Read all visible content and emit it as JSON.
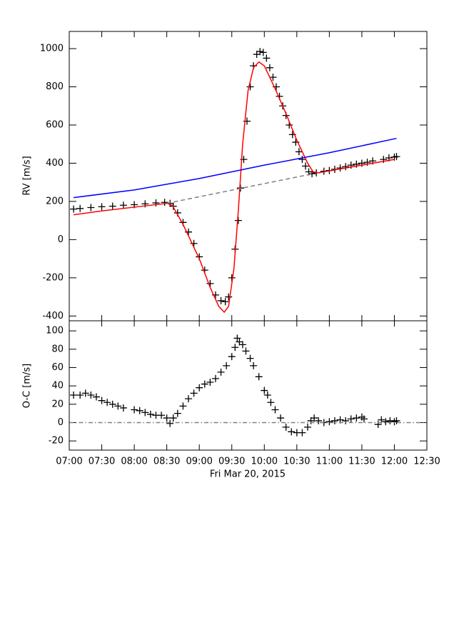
{
  "chart_data": [
    {
      "type": "scatter",
      "y_label": "RV [m/s]",
      "xlim": [
        "07:00",
        "12:30"
      ],
      "ylim": [
        -425,
        1090
      ],
      "yticks": [
        -400,
        -200,
        0,
        200,
        400,
        600,
        800,
        1000
      ],
      "series": [
        {
          "style": "cross",
          "color": "#000000",
          "x": [
            "07:04",
            "07:10",
            "07:20",
            "07:30",
            "07:40",
            "07:50",
            "08:00",
            "08:10",
            "08:20",
            "08:28",
            "08:33",
            "08:36",
            "08:40",
            "08:45",
            "08:50",
            "08:55",
            "09:00",
            "09:05",
            "09:10",
            "09:15",
            "09:20",
            "09:24",
            "09:27",
            "09:30",
            "09:33",
            "09:36",
            "09:38",
            "09:41",
            "09:44",
            "09:47",
            "09:50",
            "09:53",
            "09:56",
            "09:59",
            "10:02",
            "10:05",
            "10:08",
            "10:11",
            "10:14",
            "10:17",
            "10:20",
            "10:23",
            "10:26",
            "10:29",
            "10:32",
            "10:35",
            "10:38",
            "10:41",
            "10:44",
            "10:48",
            "10:55",
            "11:00",
            "11:05",
            "11:10",
            "11:15",
            "11:20",
            "11:25",
            "11:30",
            "11:35",
            "11:40",
            "11:50",
            "11:55",
            "12:00",
            "12:02"
          ],
          "values": [
            160,
            163,
            168,
            172,
            175,
            180,
            183,
            187,
            192,
            195,
            190,
            175,
            140,
            90,
            40,
            -20,
            -90,
            -160,
            -230,
            -290,
            -320,
            -325,
            -300,
            -200,
            -50,
            100,
            270,
            420,
            620,
            800,
            910,
            970,
            985,
            980,
            950,
            900,
            850,
            800,
            750,
            700,
            650,
            600,
            550,
            510,
            460,
            420,
            385,
            355,
            345,
            350,
            358,
            362,
            368,
            375,
            382,
            390,
            395,
            400,
            405,
            412,
            420,
            428,
            432,
            435
          ]
        },
        {
          "style": "solid",
          "color": "#ff0000",
          "x": [
            "07:04",
            "07:30",
            "08:00",
            "08:30",
            "08:35",
            "08:45",
            "09:00",
            "09:10",
            "09:18",
            "09:23",
            "09:27",
            "09:32",
            "09:36",
            "09:40",
            "09:45",
            "09:50",
            "09:55",
            "10:00",
            "10:10",
            "10:20",
            "10:30",
            "10:40",
            "10:45",
            "10:50",
            "11:00",
            "11:30",
            "12:00"
          ],
          "values": [
            130,
            150,
            170,
            190,
            180,
            80,
            -100,
            -250,
            -350,
            -380,
            -350,
            -150,
            150,
            500,
            780,
            900,
            930,
            910,
            790,
            660,
            520,
            400,
            355,
            350,
            360,
            390,
            420
          ]
        },
        {
          "style": "solid",
          "color": "#0000ff",
          "x": [
            "07:04",
            "08:00",
            "09:00",
            "10:00",
            "11:00",
            "12:02"
          ],
          "values": [
            220,
            260,
            320,
            390,
            455,
            530
          ]
        },
        {
          "style": "dashed",
          "color": "#808080",
          "x": [
            "08:30",
            "10:45"
          ],
          "values": [
            190,
            345
          ]
        }
      ]
    },
    {
      "type": "scatter",
      "y_label": "O-C [m/s]",
      "x_label": "Fri Mar 20, 2015",
      "xlim": [
        "07:00",
        "12:30"
      ],
      "ylim": [
        -30,
        111
      ],
      "xticks": [
        "07:00",
        "07:30",
        "08:00",
        "08:30",
        "09:00",
        "09:30",
        "10:00",
        "10:30",
        "11:00",
        "11:30",
        "12:00",
        "12:30"
      ],
      "yticks": [
        -20,
        0,
        20,
        40,
        60,
        80,
        100
      ],
      "series": [
        {
          "style": "cross",
          "color": "#000000",
          "x": [
            "07:04",
            "07:10",
            "07:15",
            "07:20",
            "07:25",
            "07:30",
            "07:35",
            "07:40",
            "07:45",
            "07:50",
            "08:00",
            "08:05",
            "08:10",
            "08:15",
            "08:20",
            "08:25",
            "08:30",
            "08:33",
            "08:36",
            "08:40",
            "08:45",
            "08:50",
            "08:55",
            "09:00",
            "09:05",
            "09:10",
            "09:15",
            "09:20",
            "09:25",
            "09:30",
            "09:33",
            "09:35",
            "09:37",
            "09:40",
            "09:43",
            "09:47",
            "09:50",
            "09:55",
            "10:00",
            "10:03",
            "10:06",
            "10:10",
            "10:15",
            "10:20",
            "10:25",
            "10:30",
            "10:35",
            "10:40",
            "10:43",
            "10:46",
            "10:50",
            "10:55",
            "11:00",
            "11:05",
            "11:10",
            "11:15",
            "11:20",
            "11:25",
            "11:30",
            "11:32",
            "11:45",
            "11:48",
            "11:52",
            "11:56",
            "12:00",
            "12:02"
          ],
          "values": [
            30,
            30,
            32,
            30,
            28,
            24,
            22,
            20,
            18,
            16,
            14,
            13,
            11,
            9,
            8,
            8,
            5,
            -1,
            5,
            10,
            18,
            26,
            32,
            38,
            42,
            44,
            48,
            55,
            62,
            72,
            82,
            92,
            88,
            85,
            78,
            70,
            62,
            50,
            35,
            30,
            22,
            14,
            5,
            -5,
            -10,
            -11,
            -11,
            -5,
            2,
            5,
            2,
            0,
            1,
            2,
            3,
            2,
            4,
            5,
            6,
            4,
            -2,
            3,
            1,
            2,
            1,
            2
          ]
        },
        {
          "style": "dashdot",
          "color": "#808080",
          "x": [
            "07:00",
            "12:30"
          ],
          "values": [
            0,
            0
          ]
        }
      ]
    }
  ]
}
